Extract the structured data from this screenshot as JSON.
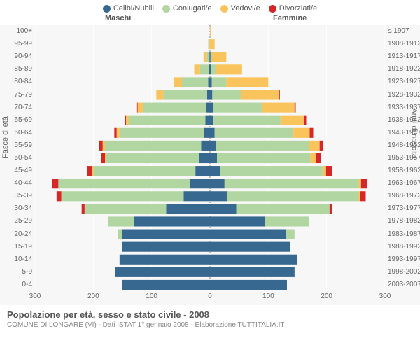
{
  "chart": {
    "type": "population-pyramid",
    "background_color": "#f7f7f7",
    "grid_color": "#ffffff",
    "legend": [
      {
        "label": "Celibi/Nubili",
        "color": "#37688f"
      },
      {
        "label": "Coniugati/e",
        "color": "#b2d6a1"
      },
      {
        "label": "Vedovi/e",
        "color": "#f9c45c"
      },
      {
        "label": "Divorziati/e",
        "color": "#d62728"
      }
    ],
    "header_male": "Maschi",
    "header_female": "Femmine",
    "y_title_left": "Fasce di età",
    "y_title_right": "Anni di nascita",
    "x_max": 300,
    "x_ticks": [
      300,
      200,
      100,
      0,
      100,
      200,
      300
    ],
    "age_groups": [
      {
        "age": "0-4",
        "birth": "2003-2007",
        "m": [
          150,
          0,
          0,
          0
        ],
        "f": [
          132,
          0,
          0,
          0
        ]
      },
      {
        "age": "5-9",
        "birth": "1998-2002",
        "m": [
          162,
          0,
          0,
          0
        ],
        "f": [
          145,
          0,
          0,
          0
        ]
      },
      {
        "age": "10-14",
        "birth": "1993-1997",
        "m": [
          155,
          0,
          0,
          0
        ],
        "f": [
          150,
          0,
          0,
          0
        ]
      },
      {
        "age": "15-19",
        "birth": "1988-1992",
        "m": [
          150,
          0,
          0,
          0
        ],
        "f": [
          138,
          0,
          0,
          0
        ]
      },
      {
        "age": "20-24",
        "birth": "1983-1987",
        "m": [
          150,
          8,
          0,
          0
        ],
        "f": [
          130,
          15,
          0,
          0
        ]
      },
      {
        "age": "25-29",
        "birth": "1978-1982",
        "m": [
          130,
          45,
          0,
          0
        ],
        "f": [
          95,
          75,
          0,
          0
        ]
      },
      {
        "age": "30-34",
        "birth": "1973-1977",
        "m": [
          75,
          140,
          0,
          5
        ],
        "f": [
          45,
          160,
          0,
          5
        ]
      },
      {
        "age": "35-39",
        "birth": "1968-1972",
        "m": [
          45,
          210,
          0,
          8
        ],
        "f": [
          30,
          225,
          2,
          10
        ]
      },
      {
        "age": "40-44",
        "birth": "1963-1967",
        "m": [
          35,
          225,
          0,
          10
        ],
        "f": [
          25,
          230,
          4,
          10
        ]
      },
      {
        "age": "45-49",
        "birth": "1958-1962",
        "m": [
          25,
          175,
          2,
          8
        ],
        "f": [
          18,
          175,
          6,
          10
        ]
      },
      {
        "age": "50-54",
        "birth": "1953-1957",
        "m": [
          18,
          160,
          2,
          6
        ],
        "f": [
          12,
          160,
          10,
          8
        ]
      },
      {
        "age": "55-59",
        "birth": "1948-1952",
        "m": [
          15,
          165,
          4,
          6
        ],
        "f": [
          10,
          160,
          18,
          6
        ]
      },
      {
        "age": "60-64",
        "birth": "1943-1947",
        "m": [
          10,
          145,
          5,
          4
        ],
        "f": [
          8,
          135,
          28,
          6
        ]
      },
      {
        "age": "65-69",
        "birth": "1938-1942",
        "m": [
          8,
          130,
          6,
          2
        ],
        "f": [
          6,
          115,
          40,
          4
        ]
      },
      {
        "age": "70-74",
        "birth": "1933-1937",
        "m": [
          6,
          108,
          10,
          1
        ],
        "f": [
          5,
          85,
          55,
          2
        ]
      },
      {
        "age": "75-79",
        "birth": "1928-1932",
        "m": [
          5,
          75,
          12,
          0
        ],
        "f": [
          4,
          50,
          65,
          1
        ]
      },
      {
        "age": "80-84",
        "birth": "1923-1927",
        "m": [
          3,
          45,
          14,
          0
        ],
        "f": [
          3,
          25,
          72,
          0
        ]
      },
      {
        "age": "85-89",
        "birth": "1918-1922",
        "m": [
          2,
          15,
          10,
          0
        ],
        "f": [
          2,
          8,
          45,
          0
        ]
      },
      {
        "age": "90-94",
        "birth": "1913-1917",
        "m": [
          1,
          4,
          6,
          0
        ],
        "f": [
          1,
          2,
          25,
          0
        ]
      },
      {
        "age": "95-99",
        "birth": "1908-1912",
        "m": [
          0,
          1,
          2,
          0
        ],
        "f": [
          0,
          0,
          8,
          0
        ]
      },
      {
        "age": "100+",
        "birth": "≤ 1907",
        "m": [
          0,
          0,
          0,
          0
        ],
        "f": [
          0,
          0,
          2,
          0
        ]
      }
    ],
    "title": "Popolazione per età, sesso e stato civile - 2008",
    "subtitle": "COMUNE DI LONGARE (VI) - Dati ISTAT 1° gennaio 2008 - Elaborazione TUTTITALIA.IT"
  }
}
